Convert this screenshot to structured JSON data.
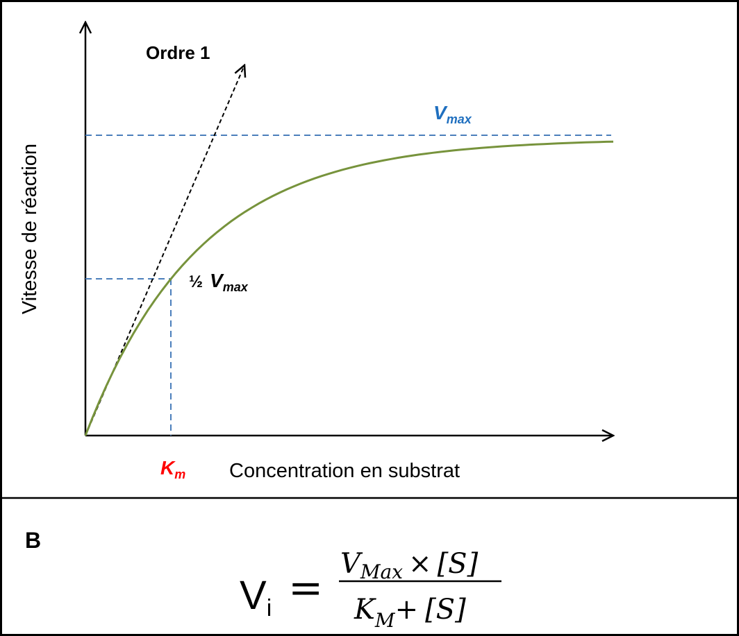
{
  "diagram": {
    "y_axis_label": "Vitesse de réaction",
    "x_axis_label": "Concentration en substrat",
    "order_label": "Ordre 1",
    "vmax_label": {
      "main": "V",
      "sub": "max"
    },
    "half_vmax_label": {
      "prefix": "½",
      "main": "V",
      "sub": "max"
    },
    "km_label": {
      "main": "K",
      "sub": "m"
    }
  },
  "panel_b": {
    "label": "B",
    "formula": {
      "lhs": "V",
      "lhs_sub": "i",
      "equals": "=",
      "numerator": {
        "v": "V",
        "v_sub": "Max",
        "times": "×",
        "s": "[S]"
      },
      "denominator": {
        "k": "K",
        "k_sub": "M",
        "plus": "+",
        "s": "[S]"
      }
    }
  }
}
